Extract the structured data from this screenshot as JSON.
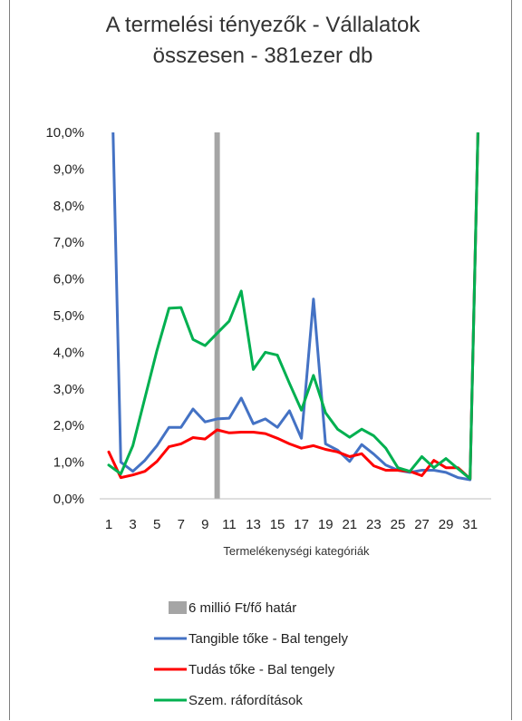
{
  "chart_data": {
    "type": "line",
    "title": "A termelési tényezők  - Vállalatok összesen - 381ezer db",
    "title_lines": [
      "A termelési tényezők  - Vállalatok",
      "összesen - 381ezer db"
    ],
    "xlabel": "Termelékenységi kategóriák",
    "ylabel": "",
    "ylim": [
      0,
      0.1
    ],
    "y_ticks": [
      0,
      0.01,
      0.02,
      0.03,
      0.04,
      0.05,
      0.06,
      0.07,
      0.08,
      0.09,
      0.1
    ],
    "y_tick_labels": [
      "0,0%",
      "1,0%",
      "2,0%",
      "3,0%",
      "4,0%",
      "5,0%",
      "6,0%",
      "7,0%",
      "8,0%",
      "9,0%",
      "10,0%"
    ],
    "x": [
      1,
      2,
      3,
      4,
      5,
      6,
      7,
      8,
      9,
      10,
      11,
      12,
      13,
      14,
      15,
      16,
      17,
      18,
      19,
      20,
      21,
      22,
      23,
      24,
      25,
      26,
      27,
      28,
      29,
      30,
      31,
      32
    ],
    "x_tick_labels": [
      "1",
      "3",
      "5",
      "7",
      "9",
      "11",
      "13",
      "15",
      "17",
      "19",
      "21",
      "23",
      "25",
      "27",
      "29",
      "31"
    ],
    "threshold_x": 10,
    "threshold_name": "6 millió Ft/fő határ",
    "series": [
      {
        "name": "Tangible tőke  - Bal tengely",
        "color": "#4472c4",
        "values": [
          0.15,
          0.01,
          0.0075,
          0.0105,
          0.0145,
          0.0195,
          0.0195,
          0.0245,
          0.021,
          0.0218,
          0.022,
          0.0275,
          0.0205,
          0.0218,
          0.0195,
          0.024,
          0.0165,
          0.0545,
          0.015,
          0.0133,
          0.0102,
          0.0148,
          0.0122,
          0.0092,
          0.0078,
          0.0072,
          0.0078,
          0.0078,
          0.0072,
          0.0058,
          0.0052,
          0.15
        ]
      },
      {
        "name": "Tudás tőke  - Bal tengely",
        "color": "#ff0000",
        "values": [
          0.0128,
          0.0058,
          0.0065,
          0.0075,
          0.0102,
          0.0142,
          0.015,
          0.0167,
          0.0163,
          0.0188,
          0.018,
          0.0182,
          0.0182,
          0.0178,
          0.0165,
          0.015,
          0.0138,
          0.0145,
          0.0135,
          0.0128,
          0.0115,
          0.0123,
          0.009,
          0.0078,
          0.0078,
          0.0075,
          0.0063,
          0.0105,
          0.0085,
          0.0085,
          0.0055,
          0.15
        ]
      },
      {
        "name": "Szem. ráfordítások",
        "color": "#00b050",
        "values": [
          0.0092,
          0.0068,
          0.0145,
          0.0275,
          0.0405,
          0.052,
          0.0522,
          0.0435,
          0.0418,
          0.0452,
          0.0485,
          0.0567,
          0.0353,
          0.04,
          0.0392,
          0.0315,
          0.0242,
          0.0337,
          0.0235,
          0.019,
          0.0168,
          0.019,
          0.0172,
          0.0138,
          0.0085,
          0.0075,
          0.0115,
          0.0085,
          0.011,
          0.0082,
          0.0055,
          0.15
        ]
      }
    ],
    "legend_position": "bottom",
    "grid": false
  }
}
